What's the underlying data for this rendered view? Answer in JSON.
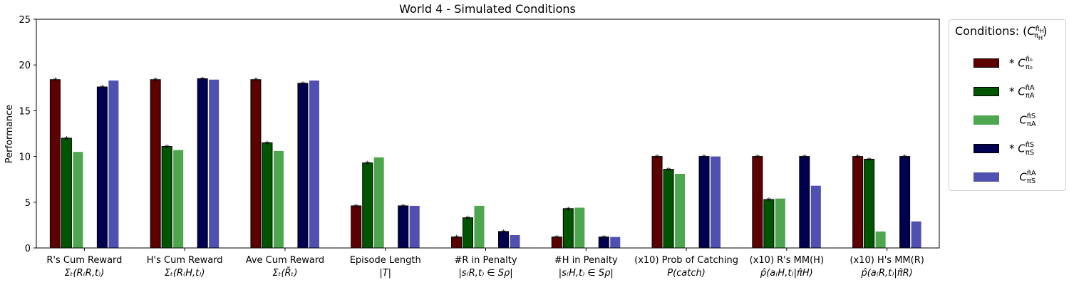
{
  "chart_data": {
    "type": "bar",
    "title": "World 4 - Simulated Conditions",
    "ylabel": "Performance",
    "xlabel": "",
    "ylim": [
      0,
      25
    ],
    "yticks": [
      0,
      5,
      10,
      15,
      20,
      25
    ],
    "grid": false,
    "legend_position": "outside-right",
    "legend_title": "Conditions: (C^{π̂_H}_{π_H})",
    "categories": [
      {
        "line1": "R's Cum Reward",
        "line2": "Σₜ(R₍R,t₎)"
      },
      {
        "line1": "H's Cum Reward",
        "line2": "Σₜ(R₍H,t₎)"
      },
      {
        "line1": "Ave Cum Reward",
        "line2": "Σₜ(R̄ₜ)"
      },
      {
        "line1": "Episode Length",
        "line2": "|T|"
      },
      {
        "line1": "#R in Penalty",
        "line2": "|s₍R,t₎ ∈ Sρ|"
      },
      {
        "line1": "#H in Penalty",
        "line2": "|s₍H,t₎ ∈ Sρ|"
      },
      {
        "line1": "(x10) Prob of Catching",
        "line2": "P(catch)"
      },
      {
        "line1": "(x10) R's MM(H)",
        "line2": "p̂(a₍H,t₎|π̂H)"
      },
      {
        "line1": "(x10) H's MM(R)",
        "line2": "p̂(a₍R,t₎|π̂R)"
      }
    ],
    "series": [
      {
        "name": "* C^{π̂0}_{π0}",
        "legend_star": "*",
        "sup": "π̂₀",
        "sub": "π₀",
        "color": "#5c0000",
        "values": [
          18.4,
          18.4,
          18.4,
          4.6,
          1.2,
          1.2,
          10.0,
          10.0,
          10.0
        ],
        "stars": [
          true,
          true,
          true,
          true,
          true,
          true,
          true,
          true,
          true
        ]
      },
      {
        "name": "* C^{π̂A}_{πA}",
        "legend_star": "*",
        "sup": "π̂A",
        "sub": "πA",
        "color": "#005500",
        "values": [
          12.0,
          11.1,
          11.5,
          9.3,
          3.3,
          4.3,
          8.6,
          5.3,
          9.7
        ],
        "stars": [
          true,
          true,
          true,
          true,
          true,
          true,
          true,
          true,
          true
        ]
      },
      {
        "name": "C^{π̂S}_{πA}",
        "legend_star": "",
        "sup": "π̂S",
        "sub": "πA",
        "color": "#4ea64e",
        "values": [
          10.5,
          10.7,
          10.6,
          9.9,
          4.6,
          4.4,
          8.1,
          5.4,
          1.8
        ],
        "stars": [
          false,
          false,
          false,
          false,
          false,
          false,
          false,
          false,
          false
        ]
      },
      {
        "name": "* C^{π̂S}_{πS}",
        "legend_star": "*",
        "sup": "π̂S",
        "sub": "πS",
        "color": "#000050",
        "values": [
          17.6,
          18.5,
          18.0,
          4.6,
          1.8,
          1.2,
          10.0,
          10.0,
          10.0
        ],
        "stars": [
          true,
          true,
          true,
          true,
          true,
          true,
          true,
          true,
          true
        ]
      },
      {
        "name": "C^{π̂A}_{πS}",
        "legend_star": "",
        "sup": "π̂A",
        "sub": "πS",
        "color": "#5050b0",
        "values": [
          18.3,
          18.4,
          18.3,
          4.6,
          1.4,
          1.2,
          10.0,
          6.8,
          2.9
        ],
        "stars": [
          false,
          false,
          false,
          false,
          false,
          false,
          false,
          false,
          false
        ]
      }
    ]
  }
}
